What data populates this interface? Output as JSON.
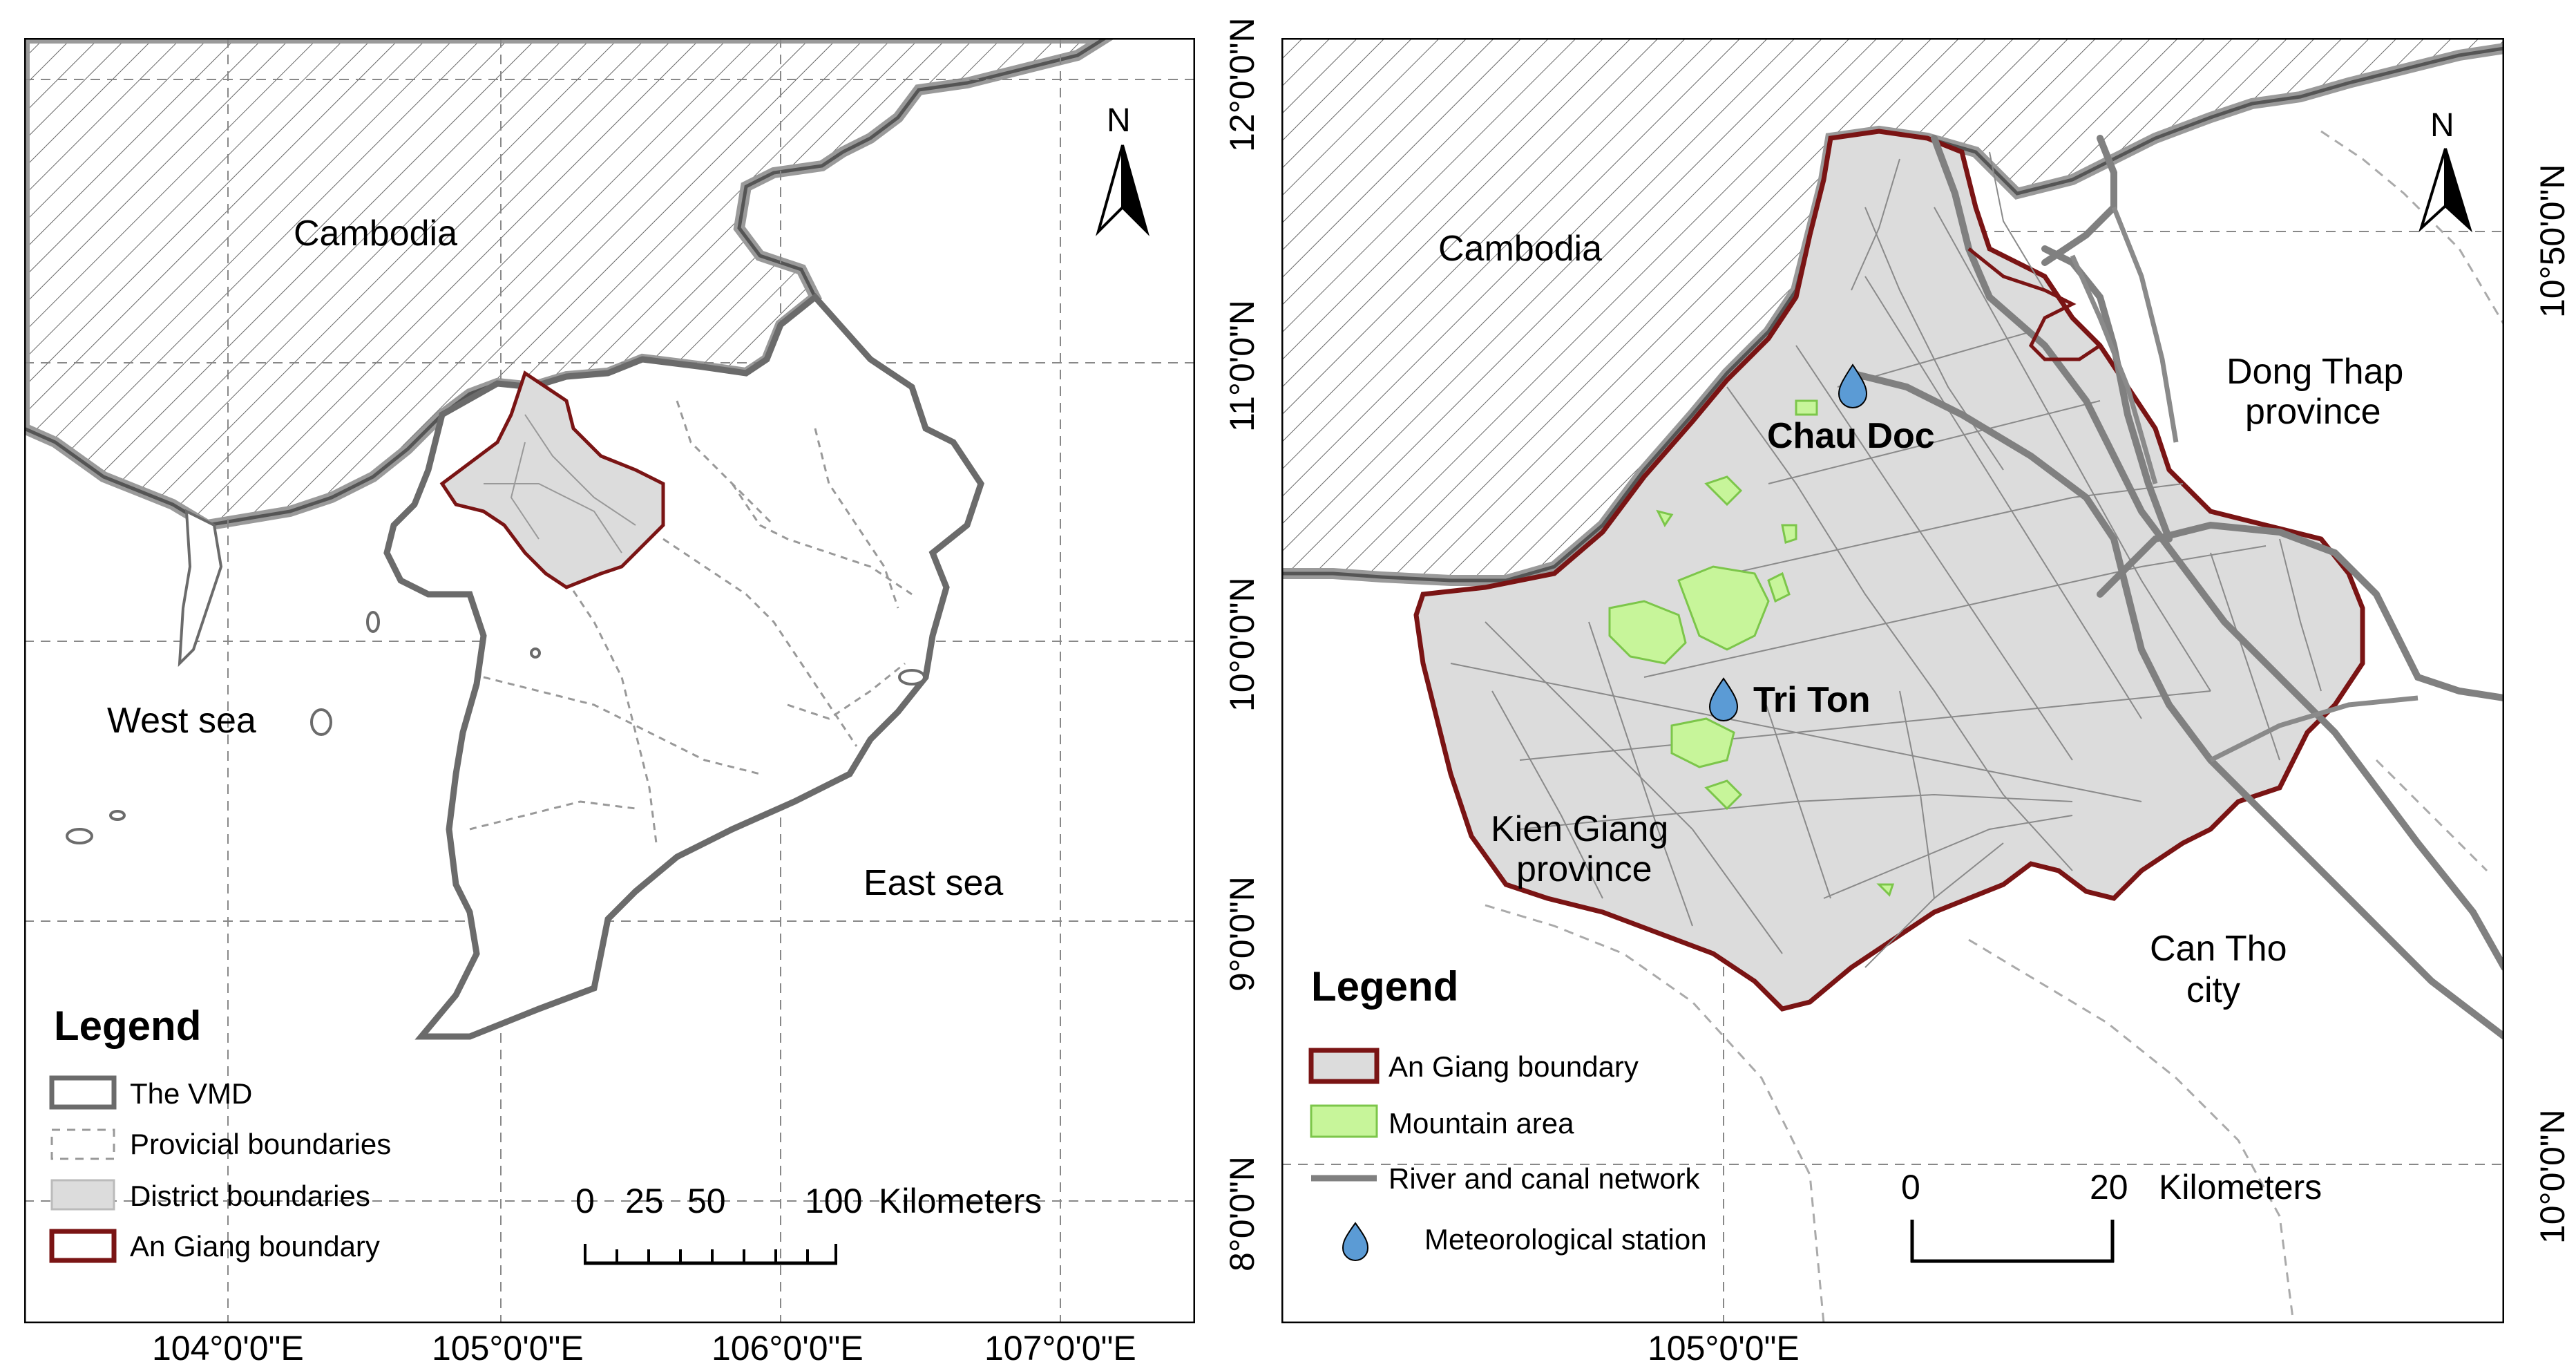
{
  "left_map": {
    "north_label": "N",
    "places": {
      "cambodia": "Cambodia",
      "west_sea": "West sea",
      "east_sea": "East sea"
    },
    "lon_ticks": [
      "104°0'0\"E",
      "105°0'0\"E",
      "106°0'0\"E",
      "107°0'0\"E"
    ],
    "lat_ticks": [
      "12°0'0\"N",
      "11°0'0\"N",
      "10°0'0\"N",
      "9°0'0\"N",
      "8°0'0\"N"
    ],
    "legend": {
      "title": "Legend",
      "items": [
        {
          "label": "The VMD",
          "symbol": "vmd-outline"
        },
        {
          "label": "Provicial boundaries",
          "symbol": "dashed-boundary"
        },
        {
          "label": "District boundaries",
          "symbol": "grey-fill"
        },
        {
          "label": "An Giang boundary",
          "symbol": "red-outline"
        }
      ]
    },
    "scale_bar": {
      "labels": [
        "0",
        "25",
        "50",
        "100"
      ],
      "unit": "Kilometers"
    }
  },
  "right_map": {
    "north_label": "N",
    "places": {
      "cambodia": "Cambodia",
      "dong_thap_line1": "Dong Thap",
      "dong_thap_line2": "province",
      "kien_giang_line1": "Kien Giang",
      "kien_giang_line2": "province",
      "can_tho_line1": "Can Tho",
      "can_tho_line2": "city"
    },
    "stations": [
      {
        "label": "Chau Doc"
      },
      {
        "label": "Tri Ton"
      }
    ],
    "lon_ticks": [
      "105°0'0\"E"
    ],
    "lat_ticks": [
      "10°50'0\"N",
      "10°0'0\"N"
    ],
    "legend": {
      "title": "Legend",
      "items": [
        {
          "label": "An Giang boundary",
          "symbol": "red-outline-grey-fill"
        },
        {
          "label": "Mountain area",
          "symbol": "green-fill"
        },
        {
          "label": "River and canal network",
          "symbol": "grey-line"
        },
        {
          "label": "Meteorological station",
          "symbol": "blue-drop"
        }
      ]
    },
    "scale_bar": {
      "labels": [
        "0",
        "20"
      ],
      "unit": "Kilometers"
    }
  },
  "colors": {
    "an_giang_boundary": "#7a1414",
    "district_fill": "#dcdcdc",
    "mountain_fill": "#c7f59a",
    "mountain_stroke": "#7cc64a",
    "river": "#808080",
    "station": "#5b9bd5",
    "hatch": "#555555"
  }
}
